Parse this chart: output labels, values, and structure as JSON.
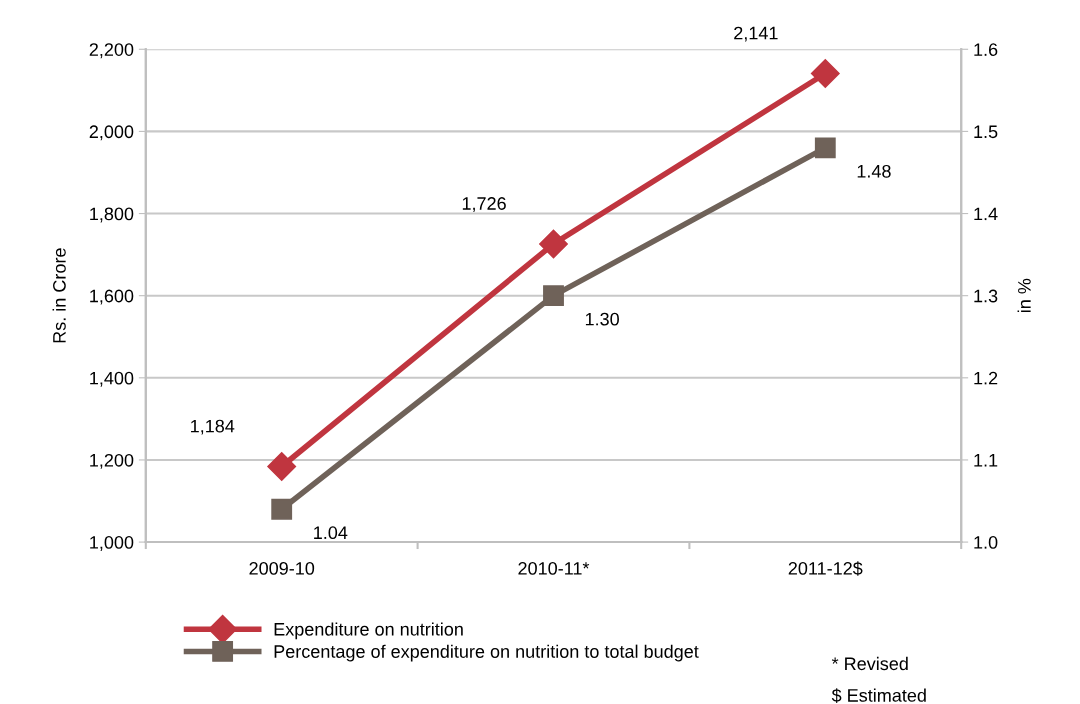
{
  "chart_data": {
    "type": "line",
    "ylabel": "Rs. in Crore",
    "y2label": "in %",
    "categories": [
      "2009-10",
      "2010-11*",
      "2011-12$"
    ],
    "series": [
      {
        "name": "Expenditure on nutrition",
        "color": "#c0353f",
        "values": [
          1184,
          1726,
          2141
        ],
        "marker": "diamond",
        "value_labels": [
          "1,184",
          "1,726",
          "2,141"
        ]
      },
      {
        "name": "Percentage of expenditure on nutrition to total budget",
        "color": "#6f6259",
        "values": [
          1.04,
          1.3,
          1.48
        ],
        "axis": "y2",
        "marker": "square",
        "value_labels": [
          "1.04",
          "1.30",
          "1.48"
        ]
      }
    ],
    "ylim": [
      1000,
      2200
    ],
    "yticks": [
      {
        "value": 1000,
        "label": "1,000"
      },
      {
        "value": 1200,
        "label": "1,200"
      },
      {
        "value": 1400,
        "label": "1,400"
      },
      {
        "value": 1600,
        "label": "1,600"
      },
      {
        "value": 1800,
        "label": "1,800"
      },
      {
        "value": 2000,
        "label": "2,000"
      },
      {
        "value": 2200,
        "label": "2,200"
      }
    ],
    "y2lim": [
      1.0,
      1.6
    ],
    "y2ticks": [
      {
        "value": 1.0,
        "label": "1.0"
      },
      1.1,
      1.2,
      1.3,
      1.4,
      1.5,
      1.6
    ],
    "grid": "y",
    "legend": "bottom",
    "annotations": [
      "* Revised",
      "$ Estimated"
    ]
  }
}
